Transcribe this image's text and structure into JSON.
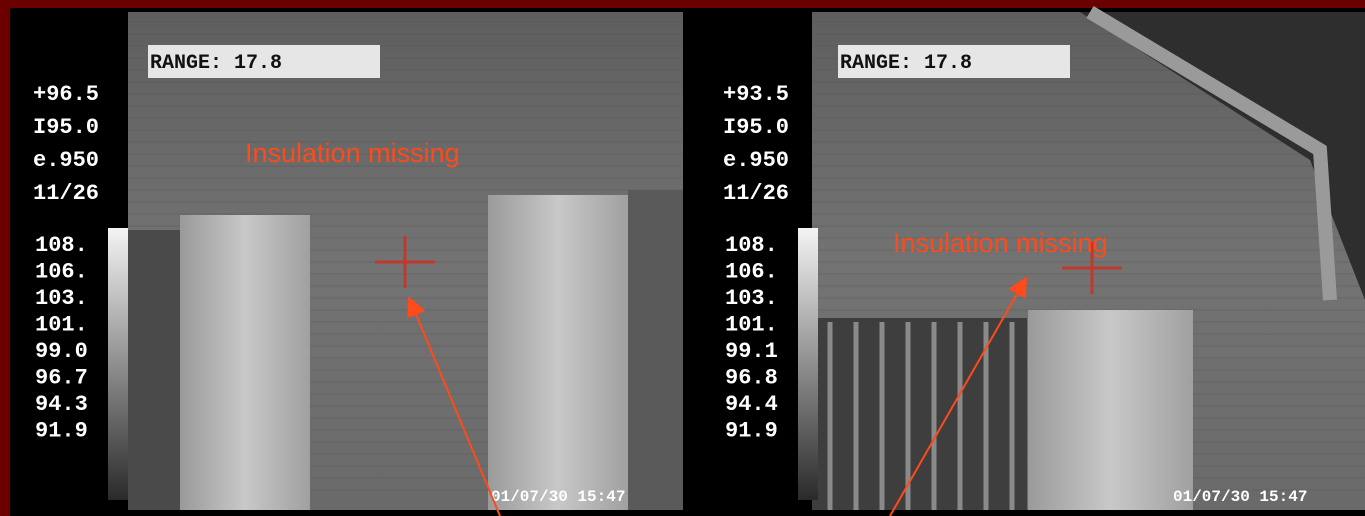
{
  "panels": [
    {
      "range": "RANGE: 17.8",
      "readouts": [
        "+96.5",
        "I95.0",
        "e.950",
        "11/26"
      ],
      "scale": [
        "108.",
        "106.",
        "103.",
        "101.",
        "99.0",
        "96.7",
        "94.3",
        "91.9"
      ],
      "timestamp": "01/07/30 15:47",
      "annotation": "Insulation missing"
    },
    {
      "range": "RANGE: 17.8",
      "readouts": [
        "+93.5",
        "I95.0",
        "e.950",
        "11/26"
      ],
      "scale": [
        "108.",
        "106.",
        "103.",
        "101.",
        "99.1",
        "96.8",
        "94.4",
        "91.9"
      ],
      "timestamp": "01/07/30 15:47",
      "annotation": "Insulation missing"
    }
  ]
}
